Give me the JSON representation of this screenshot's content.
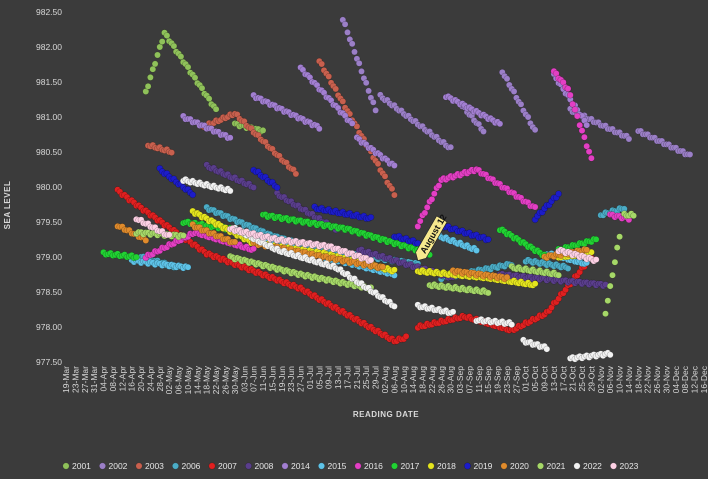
{
  "chart_data": {
    "type": "scatter",
    "title": "",
    "xlabel": "READING DATE",
    "ylabel": "SEA LEVEL",
    "ylim": [
      977.5,
      982.5
    ],
    "ytick_step": 0.5,
    "y_ticks": [
      "977.50",
      "978.00",
      "978.50",
      "979.00",
      "979.50",
      "980.00",
      "980.50",
      "981.00",
      "981.50",
      "982.00",
      "982.50"
    ],
    "x_ticks": [
      "19-Mar",
      "23-Mar",
      "27-Mar",
      "31-Mar",
      "04-Apr",
      "08-Apr",
      "12-Apr",
      "16-Apr",
      "20-Apr",
      "24-Apr",
      "28-Apr",
      "02-May",
      "06-May",
      "10-May",
      "14-May",
      "18-May",
      "22-May",
      "26-May",
      "30-May",
      "03-Jun",
      "07-Jun",
      "11-Jun",
      "15-Jun",
      "19-Jun",
      "23-Jun",
      "27-Jun",
      "01-Jul",
      "05-Jul",
      "09-Jul",
      "13-Jul",
      "17-Jul",
      "21-Jul",
      "25-Jul",
      "29-Jul",
      "02-Aug",
      "06-Aug",
      "10-Aug",
      "14-Aug",
      "18-Aug",
      "22-Aug",
      "26-Aug",
      "30-Aug",
      "03-Sep",
      "07-Sep",
      "11-Sep",
      "15-Sep",
      "19-Sep",
      "23-Sep",
      "27-Sep",
      "01-Oct",
      "05-Oct",
      "09-Oct",
      "13-Oct",
      "17-Oct",
      "21-Oct",
      "25-Oct",
      "29-Oct",
      "02-Nov",
      "06-Nov",
      "10-Nov",
      "14-Nov",
      "18-Nov",
      "22-Nov",
      "26-Nov",
      "30-Nov",
      "04-Dec",
      "08-Dec",
      "12-Dec",
      "16-Dec"
    ],
    "x_unit": "days since 19-Mar (tick every 4 days)",
    "grid": false,
    "legend_position": "bottom",
    "annotation": {
      "text": "August 12",
      "x": 150,
      "y": 978.95
    },
    "series": [
      {
        "name": "2001",
        "color": "#8fc15a",
        "segments": [
          [
            34,
            981.35,
            42,
            982.2
          ],
          [
            42,
            982.2,
            64,
            981.1
          ],
          [
            72,
            980.9,
            84,
            980.8
          ]
        ]
      },
      {
        "name": "2002",
        "color": "#9b7fc7",
        "segments": [
          [
            118,
            982.4,
            132,
            981.1
          ],
          [
            134,
            981.3,
            164,
            980.55
          ],
          [
            168,
            981.2,
            178,
            980.8
          ],
          [
            186,
            981.65,
            200,
            980.8
          ],
          [
            215,
            981.1,
            240,
            980.7
          ],
          [
            244,
            980.8,
            266,
            980.45
          ]
        ]
      },
      {
        "name": "2003",
        "color": "#c8604e",
        "segments": [
          [
            35,
            980.6,
            45,
            980.5
          ],
          [
            58,
            980.85,
            72,
            981.05
          ],
          [
            72,
            981.05,
            98,
            980.2
          ],
          [
            108,
            981.8,
            140,
            979.9
          ]
        ]
      },
      {
        "name": "2006",
        "color": "#4bacc6",
        "segments": [
          [
            32,
            979.0,
            48,
            978.85
          ],
          [
            60,
            979.7,
            88,
            979.3
          ],
          [
            88,
            979.3,
            110,
            979.1
          ],
          [
            110,
            979.1,
            150,
            978.9
          ],
          [
            160,
            978.7,
            190,
            978.9
          ],
          [
            196,
            978.95,
            214,
            978.85
          ],
          [
            228,
            979.6,
            238,
            979.7
          ]
        ]
      },
      {
        "name": "2007",
        "color": "#e02020",
        "segments": [
          [
            22,
            979.95,
            32,
            979.7
          ],
          [
            32,
            979.7,
            60,
            979.05
          ],
          [
            60,
            979.05,
            100,
            978.55
          ],
          [
            100,
            978.55,
            140,
            977.8
          ],
          [
            140,
            977.8,
            145,
            977.85
          ],
          [
            150,
            978.0,
            170,
            978.15
          ],
          [
            170,
            978.15,
            190,
            977.95
          ],
          [
            190,
            977.95,
            205,
            978.2
          ],
          [
            205,
            978.2,
            224,
            979.0
          ]
        ]
      },
      {
        "name": "2008",
        "color": "#5a3e8c",
        "segments": [
          [
            60,
            980.3,
            80,
            980.0
          ],
          [
            90,
            979.9,
            115,
            979.4
          ],
          [
            125,
            979.1,
            165,
            978.7
          ],
          [
            185,
            978.75,
            230,
            978.6
          ]
        ]
      },
      {
        "name": "2014",
        "color": "#a27fd1",
        "segments": [
          [
            50,
            981.0,
            70,
            980.7
          ],
          [
            80,
            981.3,
            108,
            980.85
          ],
          [
            100,
            981.7,
            122,
            980.9
          ],
          [
            124,
            980.7,
            140,
            980.3
          ],
          [
            162,
            981.3,
            185,
            980.9
          ],
          [
            208,
            981.6,
            222,
            980.9
          ]
        ]
      },
      {
        "name": "2015",
        "color": "#5ec3e8",
        "segments": [
          [
            28,
            978.95,
            52,
            978.85
          ],
          [
            72,
            979.4,
            100,
            979.1
          ],
          [
            110,
            979.0,
            140,
            978.75
          ],
          [
            155,
            979.35,
            175,
            979.1
          ],
          [
            205,
            979.05,
            222,
            978.9
          ]
        ]
      },
      {
        "name": "2016",
        "color": "#e33fc4",
        "segments": [
          [
            34,
            979.0,
            55,
            979.35
          ],
          [
            55,
            979.35,
            80,
            979.1
          ],
          [
            150,
            979.45,
            160,
            980.1
          ],
          [
            160,
            980.1,
            175,
            980.25
          ],
          [
            175,
            980.25,
            200,
            979.7
          ],
          [
            208,
            981.65,
            214,
            981.4
          ],
          [
            214,
            981.4,
            224,
            980.4
          ],
          [
            232,
            979.6,
            240,
            979.55
          ]
        ]
      },
      {
        "name": "2017",
        "color": "#21d233",
        "segments": [
          [
            16,
            979.05,
            30,
            979.0
          ],
          [
            50,
            979.5,
            70,
            979.4
          ],
          [
            84,
            979.6,
            120,
            979.4
          ],
          [
            120,
            979.4,
            155,
            979.05
          ],
          [
            185,
            979.4,
            205,
            979.0
          ],
          [
            210,
            979.1,
            226,
            979.25
          ]
        ]
      },
      {
        "name": "2018",
        "color": "#e5e51e",
        "segments": [
          [
            54,
            979.65,
            80,
            979.2
          ],
          [
            80,
            979.2,
            110,
            979.05
          ],
          [
            110,
            979.05,
            140,
            978.8
          ],
          [
            150,
            978.8,
            180,
            978.7
          ],
          [
            180,
            978.7,
            200,
            978.6
          ],
          [
            210,
            979.0,
            224,
            979.05
          ]
        ]
      },
      {
        "name": "2019",
        "color": "#1c1cc9",
        "segments": [
          [
            40,
            980.25,
            54,
            979.9
          ],
          [
            80,
            980.25,
            90,
            980.0
          ],
          [
            106,
            979.7,
            130,
            979.55
          ],
          [
            140,
            979.3,
            150,
            979.2
          ],
          [
            160,
            979.45,
            180,
            979.25
          ],
          [
            200,
            979.55,
            210,
            979.9
          ]
        ]
      },
      {
        "name": "2020",
        "color": "#e08b2c",
        "segments": [
          [
            22,
            979.45,
            34,
            979.25
          ],
          [
            54,
            979.45,
            72,
            979.2
          ],
          [
            80,
            979.2,
            110,
            979.0
          ],
          [
            110,
            979.0,
            135,
            978.85
          ],
          [
            165,
            978.8,
            188,
            978.7
          ],
          [
            204,
            979.0,
            222,
            979.1
          ]
        ]
      },
      {
        "name": "2021",
        "color": "#a6d868",
        "segments": [
          [
            30,
            979.35,
            50,
            979.3
          ],
          [
            70,
            979.0,
            100,
            978.75
          ],
          [
            100,
            978.75,
            130,
            978.55
          ],
          [
            155,
            978.6,
            180,
            978.5
          ],
          [
            190,
            978.85,
            210,
            978.75
          ],
          [
            230,
            978.2,
            236,
            979.3
          ],
          [
            238,
            979.6,
            242,
            979.6
          ]
        ]
      },
      {
        "name": "2022",
        "color": "#f2f2f2",
        "segments": [
          [
            50,
            980.1,
            70,
            979.95
          ],
          [
            72,
            979.4,
            90,
            979.1
          ],
          [
            90,
            979.1,
            115,
            978.85
          ],
          [
            115,
            978.85,
            140,
            978.3
          ],
          [
            150,
            978.3,
            165,
            978.2
          ],
          [
            175,
            978.1,
            190,
            978.05
          ],
          [
            195,
            977.8,
            205,
            977.7
          ],
          [
            215,
            977.55,
            232,
            977.62
          ]
        ]
      },
      {
        "name": "2023",
        "color": "#fdd0e4",
        "segments": [
          [
            30,
            979.55,
            44,
            979.3
          ],
          [
            70,
            979.4,
            90,
            979.25
          ],
          [
            90,
            979.25,
            112,
            979.15
          ],
          [
            112,
            979.15,
            130,
            978.95
          ],
          [
            210,
            979.1,
            226,
            978.95
          ]
        ]
      }
    ]
  }
}
